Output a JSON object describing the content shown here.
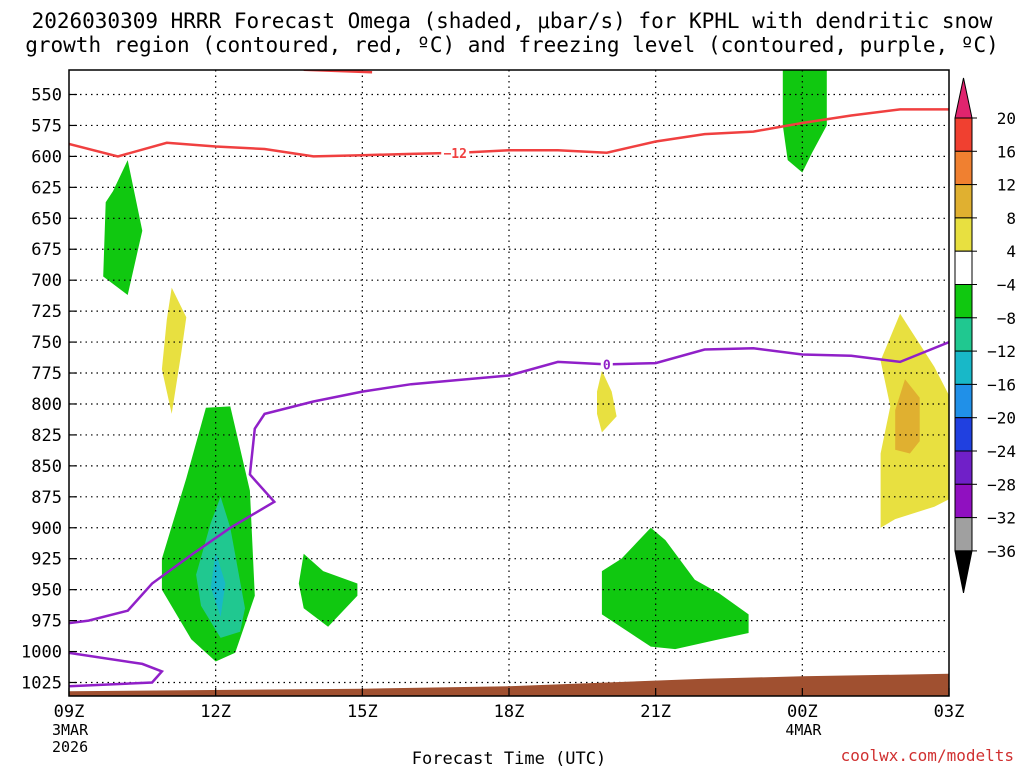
{
  "chart_data": {
    "type": "time-height contour",
    "title_lines": [
      "2026030309 HRRR Forecast Omega (shaded, μbar/s) for KPHL with dendritic snow",
      "growth region (contoured, red, ºC) and freezing level (contoured, purple, ºC)"
    ],
    "xlabel": "Forecast Time (UTC)",
    "xlim": [
      9,
      27
    ],
    "x_ticks": [
      {
        "hour": 9,
        "label": "09Z",
        "sub1": "3MAR",
        "sub2": "2026"
      },
      {
        "hour": 12,
        "label": "12Z",
        "sub1": "",
        "sub2": ""
      },
      {
        "hour": 15,
        "label": "15Z",
        "sub1": "",
        "sub2": ""
      },
      {
        "hour": 18,
        "label": "18Z",
        "sub1": "",
        "sub2": ""
      },
      {
        "hour": 21,
        "label": "21Z",
        "sub1": "",
        "sub2": ""
      },
      {
        "hour": 24,
        "label": "00Z",
        "sub1": "4MAR",
        "sub2": ""
      },
      {
        "hour": 27,
        "label": "03Z",
        "sub1": "",
        "sub2": ""
      }
    ],
    "ylabel": "Pressure (mb)",
    "ylim": [
      1040,
      530
    ],
    "y_ticks": [
      550,
      575,
      600,
      625,
      650,
      675,
      700,
      725,
      750,
      775,
      800,
      825,
      850,
      875,
      900,
      925,
      950,
      975,
      1000,
      1025
    ],
    "colorbar": {
      "labels": [
        "20",
        "16",
        "12",
        "8",
        "4",
        "−4",
        "−8",
        "−12",
        "−16",
        "−20",
        "−24",
        "−28",
        "−32",
        "−36"
      ],
      "colors": [
        "#e0246e",
        "#f04030",
        "#f08030",
        "#e0b030",
        "#e8e040",
        "#ffffff",
        "#10c810",
        "#20c890",
        "#18b8c8",
        "#2090e8",
        "#2040e0",
        "#7020c8",
        "#9010c0",
        "#a0a0a0",
        "#000000"
      ]
    },
    "omega_regions": [
      {
        "name": "green-blob-650",
        "color": "#10c810",
        "points": [
          [
            9.9,
            628
          ],
          [
            10.2,
            603
          ],
          [
            10.5,
            660
          ],
          [
            10.2,
            712
          ],
          [
            9.7,
            697
          ],
          [
            9.75,
            637
          ]
        ]
      },
      {
        "name": "yellow-blob-750",
        "color": "#e8e040",
        "points": [
          [
            11.1,
            706
          ],
          [
            11.4,
            730
          ],
          [
            11.3,
            758
          ],
          [
            11.1,
            808
          ],
          [
            10.9,
            772
          ],
          [
            11.0,
            732
          ]
        ]
      },
      {
        "name": "green-blob-950-left",
        "color": "#10c810",
        "points": [
          [
            11.8,
            803
          ],
          [
            12.3,
            802
          ],
          [
            12.7,
            870
          ],
          [
            12.8,
            955
          ],
          [
            12.4,
            1001
          ],
          [
            12.0,
            1008
          ],
          [
            11.5,
            990
          ],
          [
            10.9,
            950
          ],
          [
            10.9,
            925
          ],
          [
            11.4,
            860
          ]
        ]
      },
      {
        "name": "teal-blob-950-left",
        "color": "#20c890",
        "points": [
          [
            12.1,
            875
          ],
          [
            12.3,
            900
          ],
          [
            12.6,
            965
          ],
          [
            12.5,
            984
          ],
          [
            12.1,
            989
          ],
          [
            11.7,
            963
          ],
          [
            11.6,
            938
          ],
          [
            11.9,
            896
          ]
        ]
      },
      {
        "name": "cyan-blob-950-left",
        "color": "#18b8c8",
        "points": [
          [
            12.0,
            920
          ],
          [
            12.2,
            945
          ],
          [
            12.1,
            972
          ],
          [
            11.9,
            948
          ]
        ]
      },
      {
        "name": "green-blob-950-mid",
        "color": "#10c810",
        "points": [
          [
            13.8,
            921
          ],
          [
            14.2,
            935
          ],
          [
            14.9,
            945
          ],
          [
            14.9,
            955
          ],
          [
            14.3,
            980
          ],
          [
            13.8,
            965
          ],
          [
            13.7,
            945
          ]
        ]
      },
      {
        "name": "green-blob-950-right",
        "color": "#10c810",
        "points": [
          [
            20.9,
            900
          ],
          [
            21.2,
            910
          ],
          [
            21.8,
            942
          ],
          [
            22.3,
            953
          ],
          [
            22.9,
            970
          ],
          [
            22.9,
            985
          ],
          [
            22.2,
            991
          ],
          [
            21.4,
            998
          ],
          [
            20.9,
            996
          ],
          [
            19.9,
            970
          ],
          [
            19.9,
            935
          ],
          [
            20.3,
            925
          ]
        ]
      },
      {
        "name": "yellow-blob-800",
        "color": "#e8e040",
        "points": [
          [
            19.9,
            773
          ],
          [
            20.1,
            790
          ],
          [
            20.2,
            810
          ],
          [
            19.9,
            823
          ],
          [
            19.8,
            808
          ],
          [
            19.8,
            790
          ]
        ]
      },
      {
        "name": "green-blob-575-top",
        "color": "#10c810",
        "points": [
          [
            23.6,
            530
          ],
          [
            24.5,
            530
          ],
          [
            24.5,
            575
          ],
          [
            24.2,
            597
          ],
          [
            24.0,
            613
          ],
          [
            23.7,
            603
          ],
          [
            23.6,
            575
          ]
        ]
      },
      {
        "name": "yellow-blob-825-right",
        "color": "#e8e040",
        "points": [
          [
            26.0,
            727
          ],
          [
            26.7,
            770
          ],
          [
            27.0,
            793
          ],
          [
            27.0,
            877
          ],
          [
            26.7,
            883
          ],
          [
            25.9,
            893
          ],
          [
            25.6,
            900
          ],
          [
            25.6,
            840
          ],
          [
            25.8,
            802
          ],
          [
            25.6,
            765
          ]
        ]
      },
      {
        "name": "orange-blob-825-right",
        "color": "#e0b030",
        "points": [
          [
            26.1,
            780
          ],
          [
            26.4,
            795
          ],
          [
            26.4,
            830
          ],
          [
            26.2,
            840
          ],
          [
            25.9,
            837
          ],
          [
            25.9,
            805
          ]
        ]
      }
    ],
    "dgz_top_line": {
      "color": "#f04040",
      "points": [
        [
          13.8,
          530
        ],
        [
          15.2,
          532
        ]
      ]
    },
    "dgz_line": {
      "label": "−12",
      "label_hour": 16.9,
      "color": "#f04040",
      "points": [
        [
          9,
          590
        ],
        [
          10,
          600
        ],
        [
          11,
          589
        ],
        [
          12,
          592
        ],
        [
          13,
          594
        ],
        [
          14,
          600
        ],
        [
          15,
          599
        ],
        [
          16,
          598
        ],
        [
          17,
          597
        ],
        [
          18,
          595
        ],
        [
          19,
          595
        ],
        [
          20,
          597
        ],
        [
          21,
          588
        ],
        [
          22,
          582
        ],
        [
          23,
          580
        ],
        [
          24,
          573
        ],
        [
          25,
          567
        ],
        [
          26,
          562
        ],
        [
          27,
          562
        ]
      ]
    },
    "freezing_line": {
      "label": "0",
      "label_hour": 20.0,
      "color": "#9020c8",
      "points": [
        [
          27,
          750
        ],
        [
          26,
          766
        ],
        [
          25,
          761
        ],
        [
          24,
          760
        ],
        [
          23,
          755
        ],
        [
          22,
          756
        ],
        [
          21,
          767
        ],
        [
          20,
          768
        ],
        [
          19,
          766
        ],
        [
          18,
          777
        ],
        [
          16,
          784
        ],
        [
          15,
          790
        ],
        [
          14,
          798
        ],
        [
          13,
          808
        ],
        [
          12.8,
          820
        ],
        [
          12.7,
          857
        ],
        [
          13.2,
          879
        ],
        [
          12.3,
          900
        ],
        [
          11.5,
          922
        ],
        [
          10.7,
          945
        ],
        [
          10.2,
          967
        ],
        [
          9.4,
          975
        ],
        [
          9,
          977
        ]
      ]
    },
    "freezing_low_line": {
      "color": "#9020c8",
      "points": [
        [
          9,
          1001
        ],
        [
          10.5,
          1010
        ],
        [
          10.9,
          1016
        ],
        [
          10.7,
          1025
        ],
        [
          9,
          1028
        ]
      ]
    },
    "terrain": {
      "color": "#a05030",
      "points": [
        [
          9,
          1032
        ],
        [
          15,
          1030
        ],
        [
          18,
          1028
        ],
        [
          20,
          1025
        ],
        [
          22,
          1022
        ],
        [
          24,
          1020
        ],
        [
          27,
          1018
        ]
      ]
    },
    "credit": "coolwx.com/modelts"
  }
}
